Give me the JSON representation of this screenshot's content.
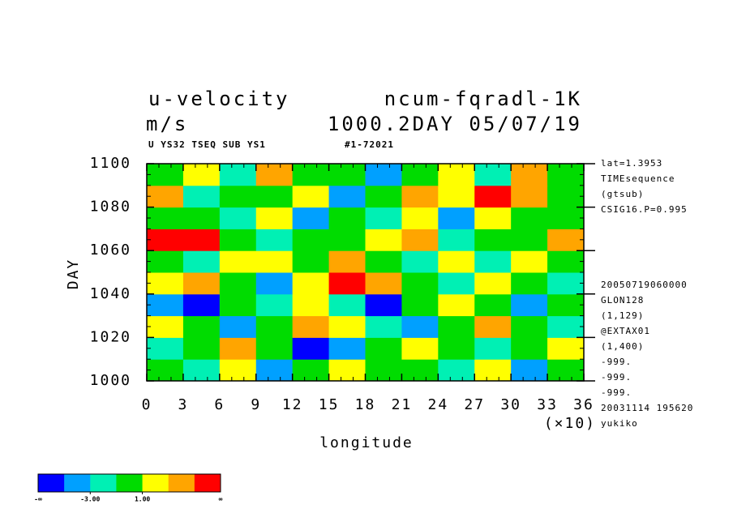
{
  "chart_data": {
    "type": "heatmap",
    "title": "u-velocity",
    "experiment": "ncum-fqradl-1K",
    "units": "m/s",
    "time_info": "1000.2DAY 05/07/19",
    "subtitle": "U YS32 TSEQ SUB YS1",
    "subtitle_id": "#1-72021",
    "x_label": "longitude",
    "y_label": "DAY",
    "x_multiplier": "(×10)",
    "xlim": [
      0,
      36
    ],
    "xticks": [
      0,
      3,
      6,
      9,
      12,
      15,
      18,
      21,
      24,
      27,
      30,
      33,
      36
    ],
    "ylim": [
      1000,
      1100
    ],
    "yticks": [
      1000,
      1020,
      1040,
      1060,
      1080,
      1100
    ],
    "z": [
      [
        0,
        -2,
        1,
        -4,
        0,
        2,
        -1,
        0,
        -3,
        1,
        -5,
        0
      ],
      [
        -2,
        0,
        3,
        -1,
        -6,
        -4,
        0,
        2,
        -1,
        -3,
        0,
        1
      ],
      [
        2,
        -1,
        -4,
        0,
        4,
        1,
        -2,
        -5,
        0,
        3,
        -1,
        -2
      ],
      [
        -4,
        -6,
        0,
        -2,
        1,
        -3,
        -6,
        0,
        2,
        -1,
        -4,
        0
      ],
      [
        1,
        3,
        -1,
        -5,
        2,
        6,
        3,
        -1,
        -3,
        2,
        0,
        -2
      ],
      [
        0,
        -2,
        2,
        1,
        -1,
        4,
        0,
        -2,
        1,
        -3,
        2,
        0
      ],
      [
        6,
        5,
        -1,
        -3,
        0,
        -1,
        2,
        4,
        -2,
        0,
        -1,
        3
      ],
      [
        -1,
        0,
        -3,
        2,
        -4,
        0,
        -2,
        1,
        -5,
        2,
        -1,
        0
      ],
      [
        3,
        -2,
        0,
        -1,
        1,
        -5,
        0,
        3,
        2,
        6,
        4,
        -1
      ],
      [
        0,
        1,
        -2,
        3,
        0,
        -1,
        -4,
        0,
        1,
        -2,
        3,
        0
      ]
    ],
    "colorbar": {
      "colors": [
        "#0000ff",
        "#00a0ff",
        "#00f0b4",
        "#00dc00",
        "#ffff00",
        "#ffa500",
        "#ff0000"
      ],
      "levels": [
        -5,
        -3,
        -1,
        1,
        3,
        5
      ],
      "ticks": [
        {
          "value": -3,
          "label": "-3.00"
        },
        {
          "value": 1,
          "label": "1.00"
        }
      ],
      "end_labels": [
        "-∞",
        "∞"
      ]
    },
    "side_info_top": [
      "lat=1.3953",
      "TIMEsequence",
      "(gtsub)",
      "CSIG16.P=0.995"
    ],
    "side_info_bottom": [
      "20050719060000",
      "GLON128",
      "(1,129)",
      "@EXTAX01",
      "(1,400)",
      "-999.",
      "-999.",
      "-999.",
      "20031114 195620",
      "yukiko"
    ]
  }
}
